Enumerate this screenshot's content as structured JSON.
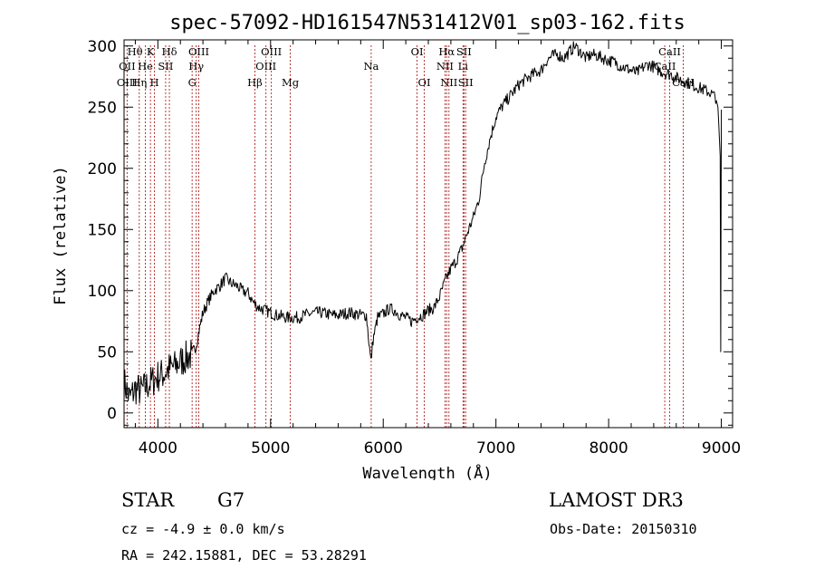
{
  "chart_data": {
    "type": "line",
    "title": "spec-57092-HD161547N531412V01_sp03-162.fits",
    "xlabel": "Wavelength (Å)",
    "ylabel": "Flux (relative)",
    "xlim": [
      3700,
      9100
    ],
    "ylim": [
      -12,
      305
    ],
    "xticks": [
      4000,
      5000,
      6000,
      7000,
      8000,
      9000
    ],
    "yticks": [
      0,
      50,
      100,
      150,
      200,
      250,
      300
    ],
    "series": [
      {
        "name": "flux",
        "x": [
          3700,
          3750,
          3800,
          3850,
          3900,
          3950,
          4000,
          4050,
          4100,
          4150,
          4200,
          4250,
          4300,
          4340,
          4360,
          4400,
          4450,
          4500,
          4550,
          4600,
          4650,
          4700,
          4750,
          4800,
          4850,
          4900,
          4950,
          5000,
          5050,
          5100,
          5150,
          5200,
          5250,
          5300,
          5350,
          5400,
          5450,
          5500,
          5550,
          5600,
          5650,
          5700,
          5750,
          5800,
          5850,
          5890,
          5910,
          5950,
          6000,
          6050,
          6100,
          6150,
          6200,
          6250,
          6300,
          6350,
          6400,
          6450,
          6500,
          6550,
          6600,
          6650,
          6700,
          6750,
          6800,
          6850,
          6900,
          6950,
          7000,
          7050,
          7100,
          7150,
          7200,
          7250,
          7300,
          7350,
          7400,
          7450,
          7500,
          7550,
          7600,
          7650,
          7700,
          7750,
          7800,
          7850,
          7900,
          7950,
          8000,
          8050,
          8100,
          8150,
          8200,
          8250,
          8300,
          8350,
          8400,
          8450,
          8500,
          8550,
          8600,
          8650,
          8700,
          8750,
          8800,
          8850,
          8900,
          8950,
          8970,
          8990,
          8995,
          9000
        ],
        "values": [
          25,
          12,
          20,
          18,
          22,
          26,
          30,
          32,
          36,
          38,
          42,
          45,
          48,
          55,
          65,
          82,
          92,
          100,
          104,
          110,
          106,
          104,
          100,
          98,
          90,
          86,
          84,
          82,
          80,
          79,
          78,
          78,
          78,
          80,
          81,
          82,
          82,
          81,
          80,
          80,
          81,
          82,
          81,
          80,
          80,
          42,
          60,
          78,
          81,
          85,
          84,
          80,
          78,
          75,
          78,
          80,
          84,
          86,
          95,
          108,
          118,
          125,
          135,
          148,
          160,
          175,
          205,
          225,
          242,
          250,
          256,
          262,
          268,
          272,
          275,
          278,
          280,
          288,
          292,
          293,
          290,
          295,
          300,
          295,
          290,
          293,
          292,
          290,
          288,
          287,
          284,
          282,
          280,
          278,
          282,
          285,
          283,
          280,
          278,
          277,
          274,
          272,
          270,
          268,
          266,
          264,
          262,
          258,
          250,
          210,
          50,
          248
        ]
      }
    ],
    "lines": [
      {
        "label": "Hθ",
        "row": 1,
        "wl": 3797,
        "noline": true
      },
      {
        "label": "OII",
        "row": 2,
        "wl": 3727,
        "noline": true
      },
      {
        "label": "OIII",
        "row": 3,
        "wl": 3727
      },
      {
        "label": "Hη",
        "row": 3,
        "wl": 3835
      },
      {
        "label": "K",
        "row": 1,
        "wl": 3934
      },
      {
        "label": "H",
        "row": 3,
        "wl": 3969
      },
      {
        "label": "He",
        "row": 2,
        "wl": 3889
      },
      {
        "label": "SII",
        "row": 2,
        "wl": 4069
      },
      {
        "label": "Hδ",
        "row": 1,
        "wl": 4102
      },
      {
        "label": "OIII",
        "row": 1,
        "wl": 4363
      },
      {
        "label": "Hγ",
        "row": 2,
        "wl": 4340
      },
      {
        "label": "G",
        "row": 3,
        "wl": 4304
      },
      {
        "label": "Hβ",
        "row": 3,
        "wl": 4861
      },
      {
        "label": "OIII",
        "row": 1,
        "wl": 5007
      },
      {
        "label": "OIII",
        "row": 2,
        "wl": 4959
      },
      {
        "label": "Mg",
        "row": 3,
        "wl": 5175
      },
      {
        "label": "Na",
        "row": 2,
        "wl": 5893
      },
      {
        "label": "OI",
        "row": 1,
        "wl": 6300
      },
      {
        "label": "OI",
        "row": 3,
        "wl": 6364
      },
      {
        "label": "Hα",
        "row": 1,
        "wl": 6563
      },
      {
        "label": "NII",
        "row": 2,
        "wl": 6548
      },
      {
        "label": "NII",
        "row": 3,
        "wl": 6583
      },
      {
        "label": "SII",
        "row": 1,
        "wl": 6716
      },
      {
        "label": "Li",
        "row": 2,
        "wl": 6708
      },
      {
        "label": "SII",
        "row": 3,
        "wl": 6731
      },
      {
        "label": "CaII",
        "row": 1,
        "wl": 8542
      },
      {
        "label": "CaII",
        "row": 2,
        "wl": 8498
      },
      {
        "label": "CaII",
        "row": 3,
        "wl": 8662
      }
    ]
  },
  "info": {
    "object_type": "STAR",
    "subclass": "G7",
    "survey": "LAMOST DR3",
    "redshift": "cz = -4.9 ± 0.0 km/s",
    "obs_date": "Obs-Date: 20150310",
    "coords": "RA = 242.15881, DEC =  53.28291"
  }
}
